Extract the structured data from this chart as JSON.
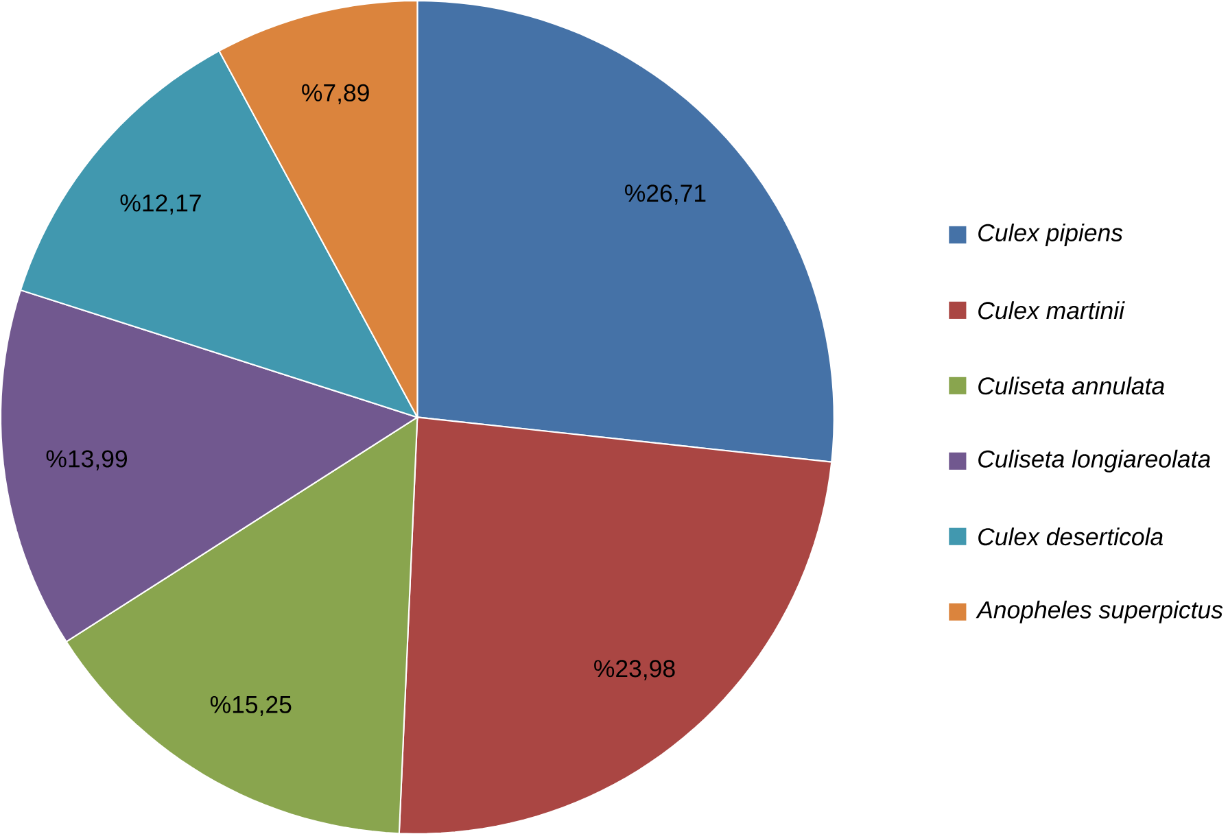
{
  "chart_data": {
    "type": "pie",
    "categories": [
      "*Culex pipiens*",
      "*Culex martinii*",
      "*Culiseta annulata*",
      "*Culiseta longiareolata*",
      "*Culex deserticola*",
      "*Anopheles superpictus*"
    ],
    "values": [
      26.71,
      23.98,
      15.25,
      13.99,
      12.17,
      7.89
    ],
    "colors": [
      "#4572a7",
      "#aa4643",
      "#89a54e",
      "#71588f",
      "#4198af",
      "#db843d"
    ],
    "value_labels": [
      "%26,71",
      "%23,98",
      "%15,25",
      "%13,99",
      "%12,17",
      "%7,89"
    ],
    "legend": "right"
  }
}
